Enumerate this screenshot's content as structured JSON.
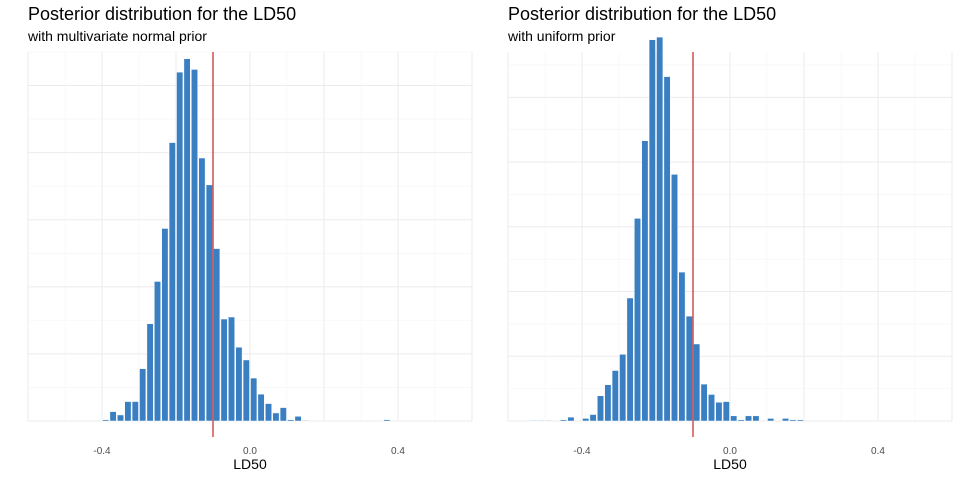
{
  "chart_data": [
    {
      "type": "bar",
      "title": "Posterior distribution for the LD50",
      "subtitle": "with multivariate normal prior",
      "xlabel": "LD50",
      "ylabel": "",
      "xlim": [
        -0.6,
        0.6
      ],
      "ylim": [
        0,
        5500
      ],
      "x_ticks": [
        -0.4,
        0.0,
        0.4
      ],
      "x_tick_labels": [
        "-0.4",
        "0.0",
        "0.4"
      ],
      "reference_line": -0.1,
      "bin_width": 0.02,
      "bin_start": -0.4,
      "values": [
        20,
        140,
        90,
        290,
        290,
        780,
        1450,
        2080,
        2870,
        4150,
        5200,
        5400,
        5240,
        3920,
        3520,
        2570,
        1520,
        1550,
        1100,
        910,
        640,
        400,
        260,
        120,
        200,
        20,
        70,
        10,
        0,
        0,
        0,
        0,
        0,
        0,
        0,
        0,
        0,
        0,
        20
      ],
      "grid": true,
      "legend": "none",
      "bar_color": "#3a7fc1",
      "line_color": "#cc3333"
    },
    {
      "type": "bar",
      "title": "Posterior distribution for the LD50",
      "subtitle": "with uniform prior",
      "xlabel": "LD50",
      "ylabel": "",
      "xlim": [
        -0.6,
        0.6
      ],
      "ylim": [
        0,
        5700
      ],
      "x_ticks": [
        -0.4,
        0.0,
        0.4
      ],
      "x_tick_labels": [
        "-0.4",
        "0.0",
        "0.4"
      ],
      "reference_line": -0.1,
      "bin_width": 0.02,
      "bin_start": -0.54,
      "values": [
        10,
        10,
        10,
        0,
        20,
        60,
        0,
        40,
        100,
        390,
        560,
        780,
        1030,
        1900,
        3130,
        4330,
        5890,
        5930,
        5320,
        3810,
        2300,
        1620,
        1190,
        570,
        410,
        290,
        300,
        80,
        20,
        80,
        80,
        0,
        40,
        0,
        40,
        20,
        20
      ],
      "grid": true,
      "legend": "none",
      "bar_color": "#3a7fc1",
      "line_color": "#cc3333"
    }
  ]
}
